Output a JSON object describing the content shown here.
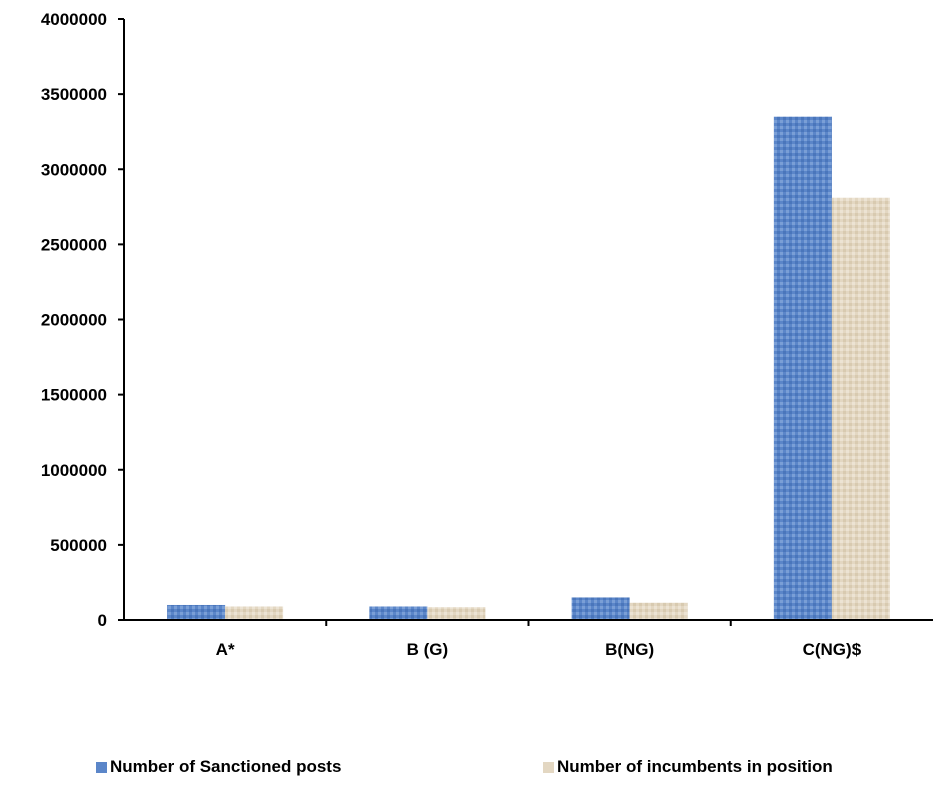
{
  "chart_data": {
    "type": "bar",
    "categories": [
      "A*",
      "B (G)",
      "B(NG)",
      "C(NG)$"
    ],
    "series": [
      {
        "name": "Number of Sanctioned posts",
        "values": [
          100000,
          90000,
          150000,
          3350000
        ],
        "color": "#5b86c9"
      },
      {
        "name": "Number of incumbents in position",
        "values": [
          90000,
          85000,
          115000,
          2810000
        ],
        "color": "#e3d7c2"
      }
    ],
    "ylim": [
      0,
      4000000
    ],
    "yticks": [
      "0",
      "500000",
      "1000000",
      "1500000",
      "2000000",
      "2500000",
      "3000000",
      "3500000",
      "4000000"
    ],
    "title": "",
    "xlabel": "",
    "ylabel": "",
    "grid": false,
    "legend_position": "bottom"
  }
}
